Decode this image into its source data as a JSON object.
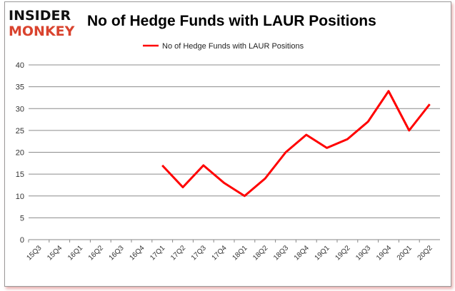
{
  "logo": {
    "line1": "INSIDER",
    "line2": "MONKEY"
  },
  "chart_data": {
    "type": "line",
    "title": "No of Hedge Funds with LAUR Positions",
    "legend": [
      "No of Hedge Funds with LAUR Positions"
    ],
    "legend_position": "top",
    "categories": [
      "15Q3",
      "15Q4",
      "16Q1",
      "16Q2",
      "16Q3",
      "16Q4",
      "17Q1",
      "17Q2",
      "17Q3",
      "17Q4",
      "18Q1",
      "18Q2",
      "18Q3",
      "18Q4",
      "19Q1",
      "19Q2",
      "19Q3",
      "19Q4",
      "20Q1",
      "20Q2"
    ],
    "series": [
      {
        "name": "No of Hedge Funds with LAUR Positions",
        "color": "#ff0000",
        "values": [
          null,
          null,
          null,
          null,
          null,
          null,
          17,
          12,
          17,
          13,
          10,
          14,
          20,
          24,
          21,
          23,
          27,
          34,
          25,
          31
        ]
      }
    ],
    "ylim": [
      0,
      40
    ],
    "yticks": [
      0,
      5,
      10,
      15,
      20,
      25,
      30,
      35,
      40
    ],
    "grid": true,
    "xlabel": "",
    "ylabel": ""
  }
}
